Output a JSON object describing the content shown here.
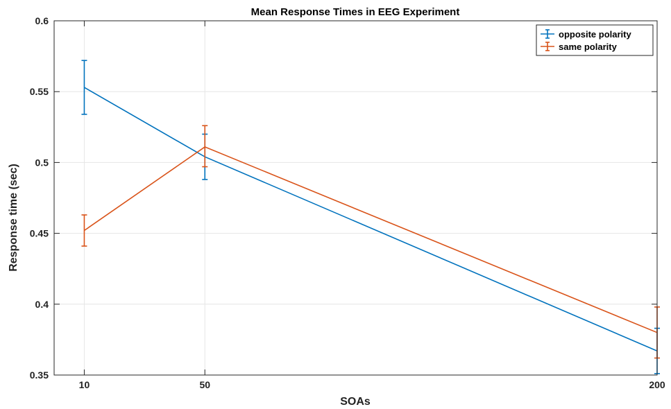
{
  "chart_data": {
    "type": "line",
    "title": "Mean Response Times in EEG Experiment",
    "xlabel": "SOAs",
    "ylabel": "Response time (sec)",
    "x": [
      10,
      50,
      200
    ],
    "xlim": [
      0,
      200
    ],
    "ylim": [
      0.35,
      0.6
    ],
    "xticks": [
      "10",
      "50",
      "200"
    ],
    "yticks": [
      "0.35",
      "0.4",
      "0.45",
      "0.5",
      "0.55",
      "0.6"
    ],
    "grid": true,
    "legend_position": "top-right",
    "series": [
      {
        "name": "opposite polarity",
        "color": "#0072BD",
        "values": [
          0.553,
          0.504,
          0.367
        ],
        "error_low": [
          0.534,
          0.488,
          0.351
        ],
        "error_high": [
          0.572,
          0.52,
          0.383
        ]
      },
      {
        "name": "same polarity",
        "color": "#D95319",
        "values": [
          0.452,
          0.511,
          0.38
        ],
        "error_low": [
          0.441,
          0.497,
          0.362
        ],
        "error_high": [
          0.463,
          0.526,
          0.398
        ]
      }
    ]
  }
}
